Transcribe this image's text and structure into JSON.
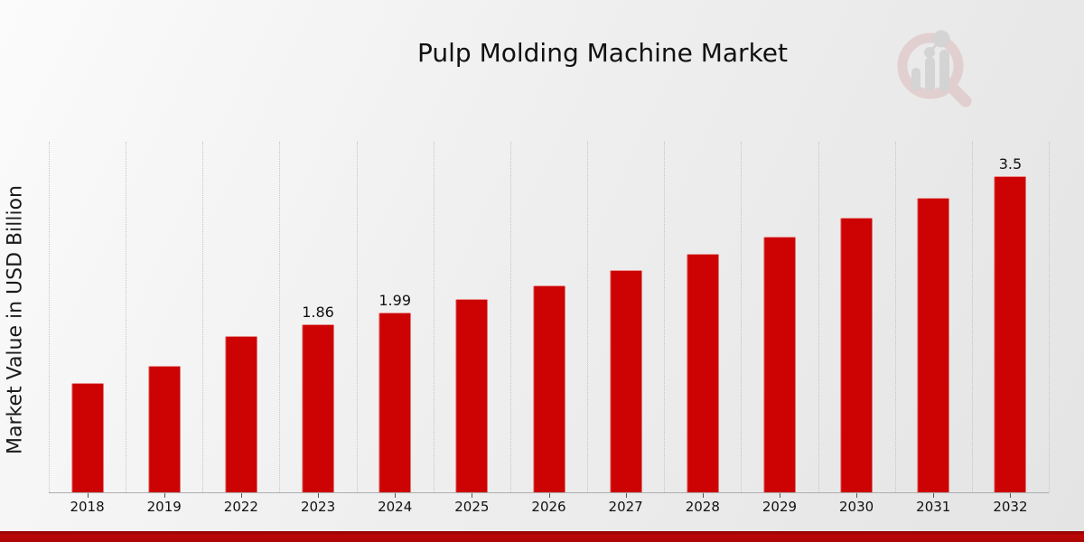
{
  "header": {
    "title": "Pulp Molding Machine Market"
  },
  "branding": {
    "logo_name": "market-research-future-logo",
    "ring_color": "#ddbebe",
    "bar_color": "#c6c6c6"
  },
  "chart_data": {
    "type": "bar",
    "title": "Pulp Molding Machine Market",
    "categories": [
      "2018",
      "2019",
      "2022",
      "2023",
      "2024",
      "2025",
      "2026",
      "2027",
      "2028",
      "2029",
      "2030",
      "2031",
      "2032"
    ],
    "values": [
      1.21,
      1.4,
      1.73,
      1.86,
      1.99,
      2.14,
      2.29,
      2.46,
      2.64,
      2.83,
      3.04,
      3.26,
      3.5
    ],
    "point_labels": [
      "",
      "",
      "",
      "1.86",
      "1.99",
      "",
      "",
      "",
      "",
      "",
      "",
      "",
      "3.5"
    ],
    "xlabel": "",
    "ylabel": "Market Value in USD Billion",
    "ylim": [
      0,
      3.9
    ],
    "bar_color": "#cc0302",
    "grid": "vertical-dotted",
    "legend": "none",
    "y_axis_ticks": "none"
  },
  "footer": {
    "stripe_color": "#b30606"
  }
}
